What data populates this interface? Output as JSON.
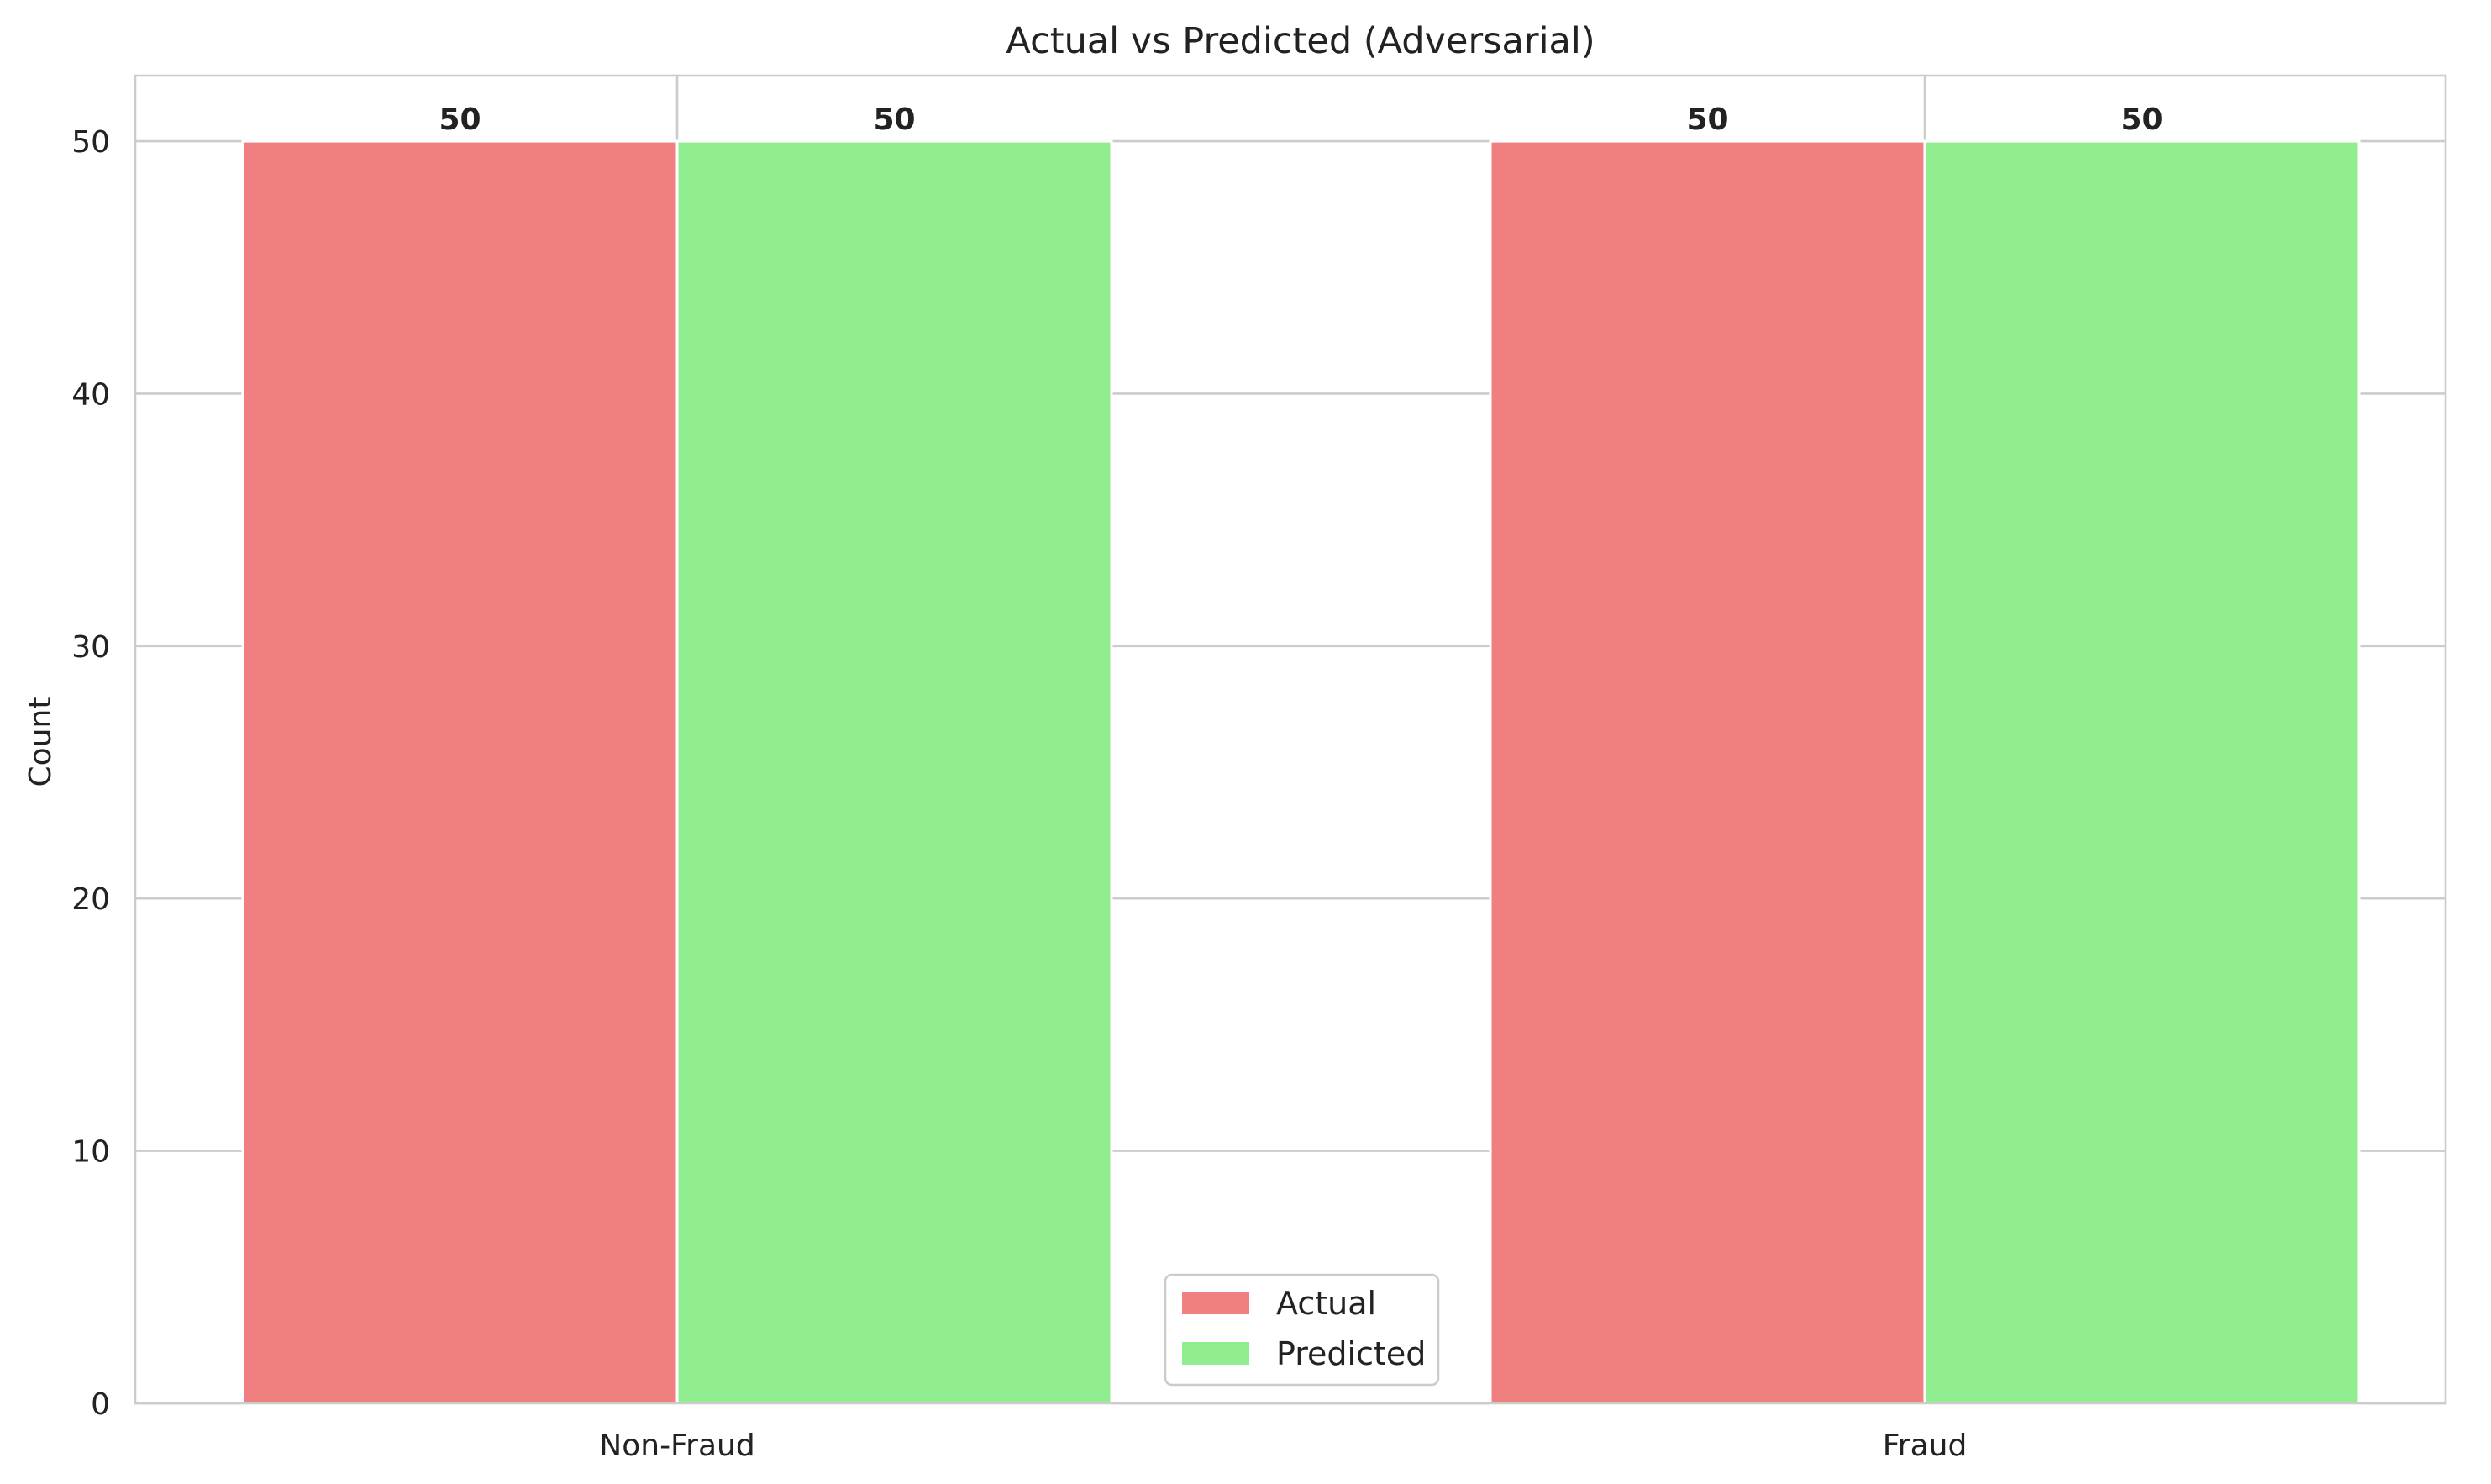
{
  "chart_data": {
    "type": "bar",
    "title": "Actual vs Predicted (Adversarial)",
    "xlabel": "",
    "ylabel": "Count",
    "categories": [
      "Non-Fraud",
      "Fraud"
    ],
    "series": [
      {
        "name": "Actual",
        "values": [
          50,
          50
        ],
        "color": "#f08080"
      },
      {
        "name": "Predicted",
        "values": [
          50,
          50
        ],
        "color": "#90ee90"
      }
    ],
    "ylim": [
      0,
      52.6
    ],
    "yticks": [
      0,
      10,
      20,
      30,
      40,
      50
    ],
    "grid": true,
    "legend_position": "bottom-center"
  }
}
